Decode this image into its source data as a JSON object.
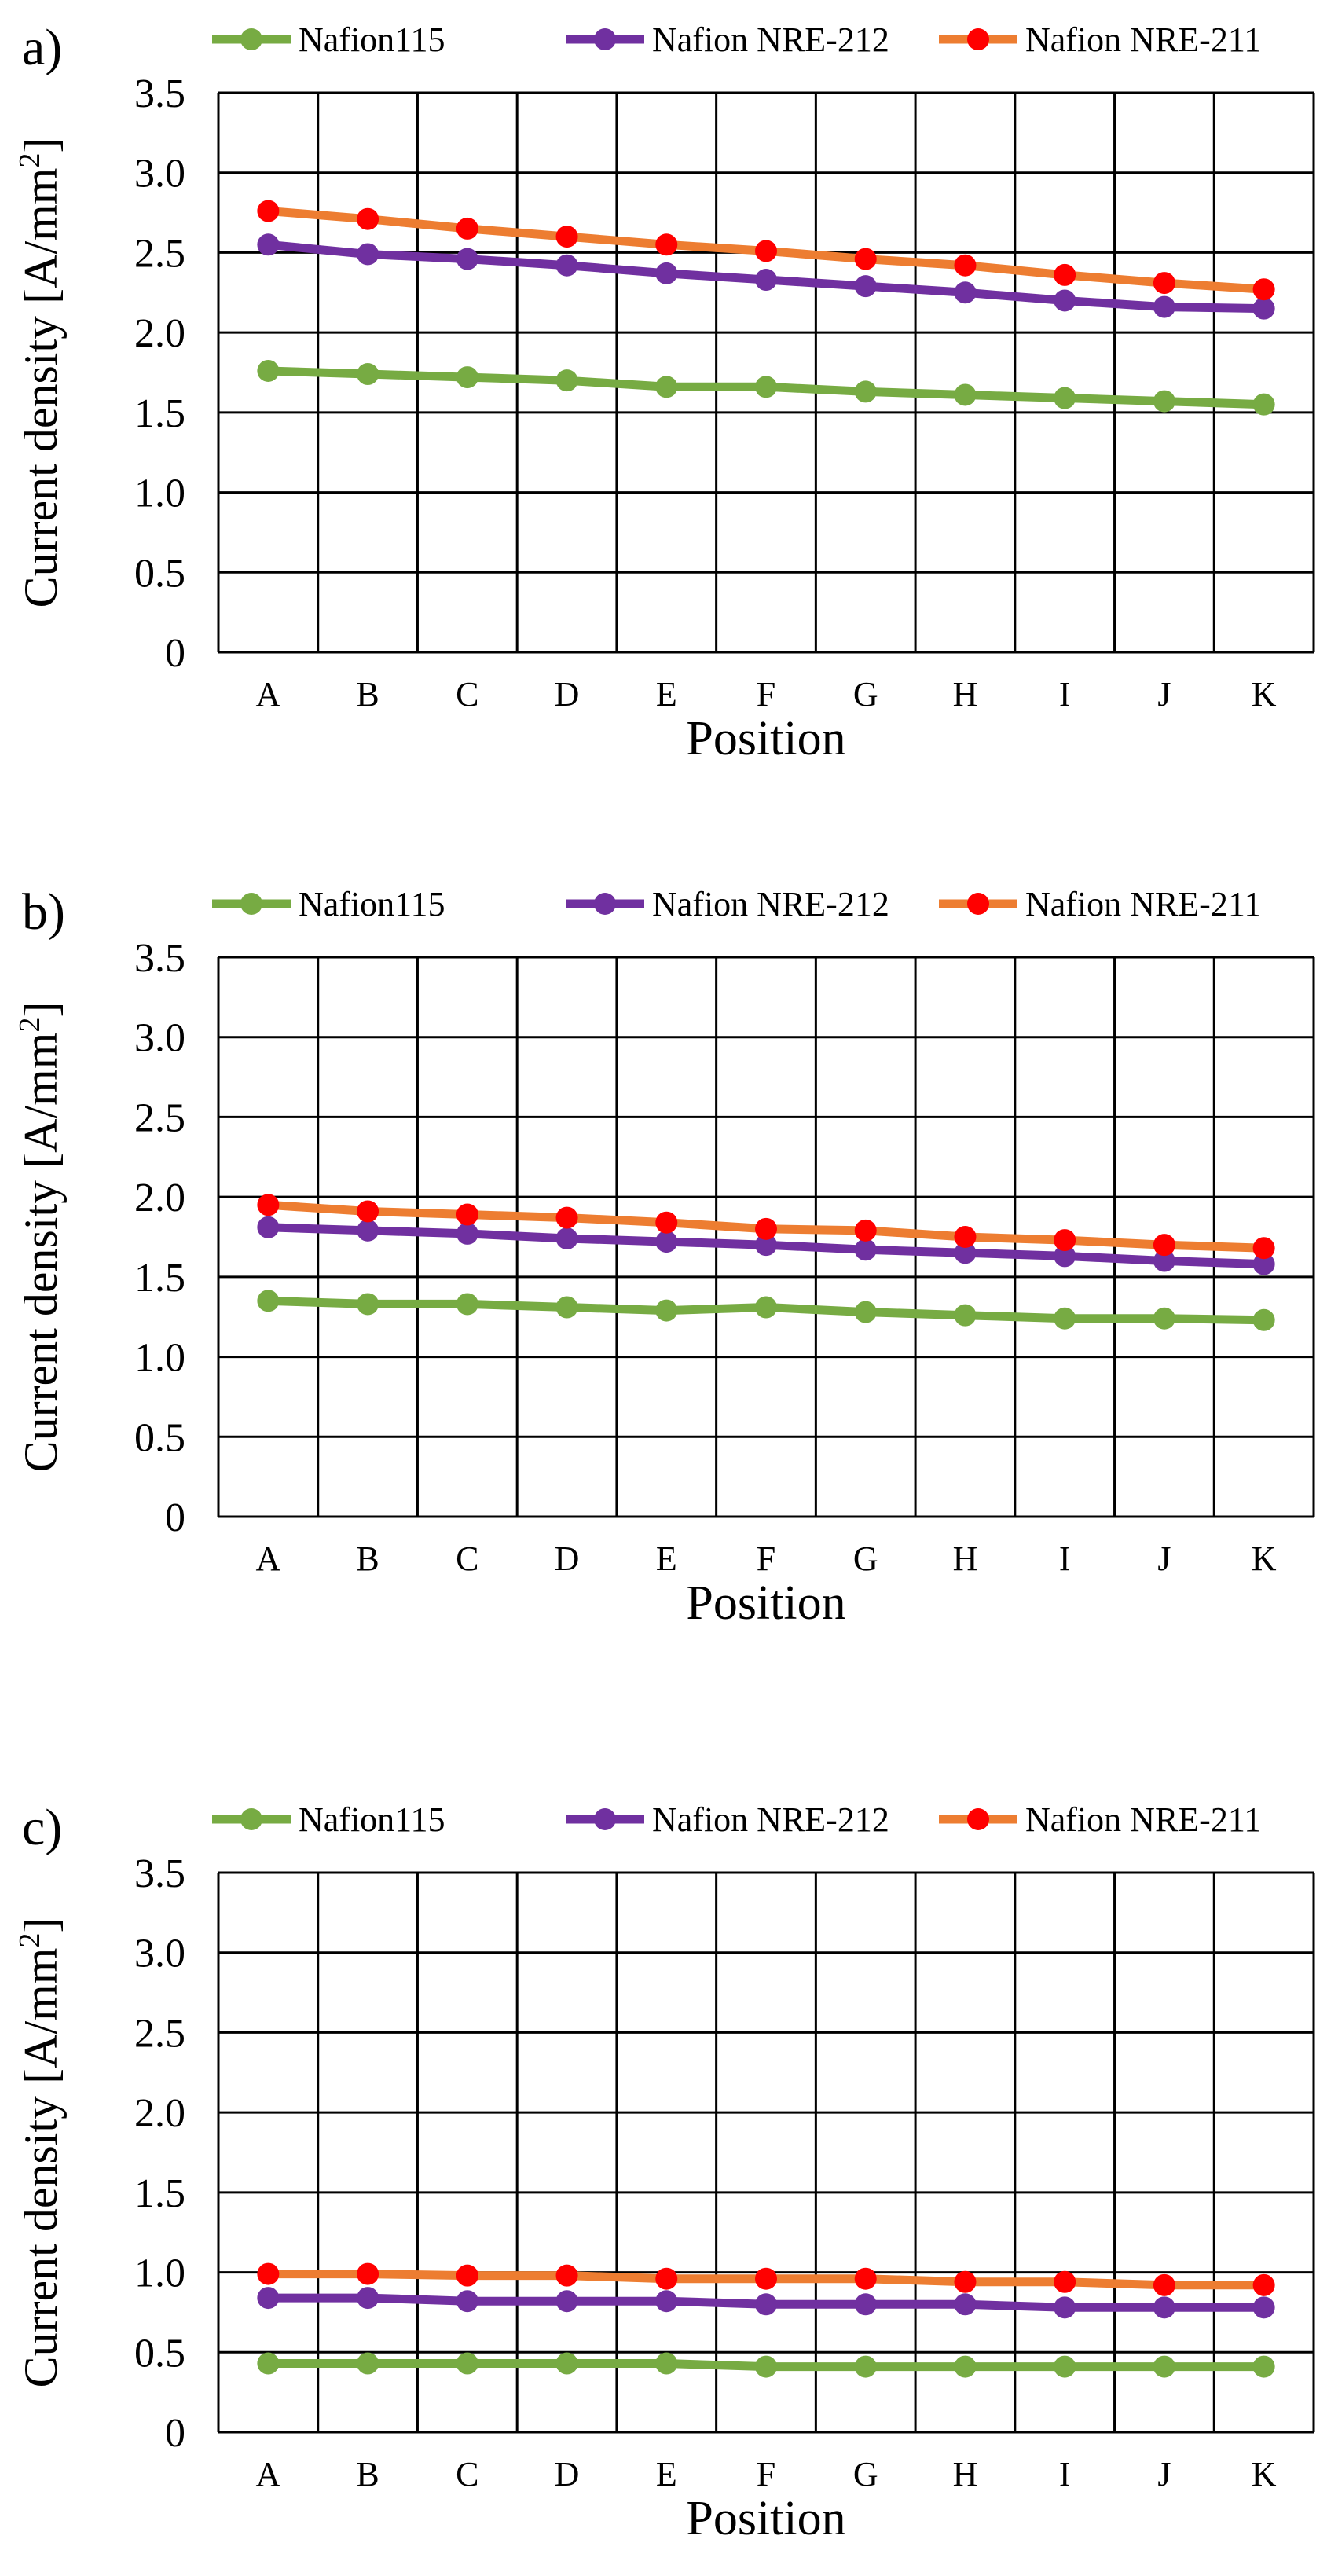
{
  "colors": {
    "Nafion115": "#77ab43",
    "Nafion NRE-212": "#7030a0",
    "Nafion NRE-211_line": "#ed7d31",
    "Nafion NRE-211_marker": "#ff0000"
  },
  "chart_data": [
    {
      "type": "line",
      "panel_label": "a)",
      "title": "",
      "xlabel": "Position",
      "ylabel_main": "Current density [A/mm",
      "ylabel_sup": "2",
      "ylabel_tail": "]",
      "categories": [
        "A",
        "B",
        "C",
        "D",
        "E",
        "F",
        "G",
        "H",
        "I",
        "J",
        "K"
      ],
      "ylim": [
        0,
        3.5
      ],
      "yticks": [
        "0",
        "0.5",
        "1.0",
        "1.5",
        "2.0",
        "2.5",
        "3.0",
        "3.5"
      ],
      "legend_position": "top",
      "series": [
        {
          "name": "Nafion115",
          "values": [
            1.76,
            1.74,
            1.72,
            1.7,
            1.66,
            1.66,
            1.63,
            1.61,
            1.59,
            1.57,
            1.55
          ]
        },
        {
          "name": "Nafion NRE-212",
          "values": [
            2.55,
            2.49,
            2.46,
            2.42,
            2.37,
            2.33,
            2.29,
            2.25,
            2.2,
            2.16,
            2.15
          ]
        },
        {
          "name": "Nafion NRE-211",
          "values": [
            2.76,
            2.71,
            2.65,
            2.6,
            2.55,
            2.51,
            2.46,
            2.42,
            2.36,
            2.31,
            2.27
          ]
        }
      ]
    },
    {
      "type": "line",
      "panel_label": "b)",
      "title": "",
      "xlabel": "Position",
      "ylabel_main": "Current density [A/mm",
      "ylabel_sup": "2",
      "ylabel_tail": "]",
      "categories": [
        "A",
        "B",
        "C",
        "D",
        "E",
        "F",
        "G",
        "H",
        "I",
        "J",
        "K"
      ],
      "ylim": [
        0,
        3.5
      ],
      "yticks": [
        "0",
        "0.5",
        "1.0",
        "1.5",
        "2.0",
        "2.5",
        "3.0",
        "3.5"
      ],
      "legend_position": "top",
      "series": [
        {
          "name": "Nafion115",
          "values": [
            1.35,
            1.33,
            1.33,
            1.31,
            1.29,
            1.31,
            1.28,
            1.26,
            1.24,
            1.24,
            1.23
          ]
        },
        {
          "name": "Nafion NRE-212",
          "values": [
            1.81,
            1.79,
            1.77,
            1.74,
            1.72,
            1.7,
            1.67,
            1.65,
            1.63,
            1.6,
            1.58
          ]
        },
        {
          "name": "Nafion NRE-211",
          "values": [
            1.95,
            1.91,
            1.89,
            1.87,
            1.84,
            1.8,
            1.79,
            1.75,
            1.73,
            1.7,
            1.68
          ]
        }
      ]
    },
    {
      "type": "line",
      "panel_label": "c)",
      "title": "",
      "xlabel": "Position",
      "ylabel_main": "Current density [A/mm",
      "ylabel_sup": "2",
      "ylabel_tail": "]",
      "categories": [
        "A",
        "B",
        "C",
        "D",
        "E",
        "F",
        "G",
        "H",
        "I",
        "J",
        "K"
      ],
      "ylim": [
        0,
        3.5
      ],
      "yticks": [
        "0",
        "0.5",
        "1.0",
        "1.5",
        "2.0",
        "2.5",
        "3.0",
        "3.5"
      ],
      "legend_position": "top",
      "series": [
        {
          "name": "Nafion115",
          "values": [
            0.43,
            0.43,
            0.43,
            0.43,
            0.43,
            0.41,
            0.41,
            0.41,
            0.41,
            0.41,
            0.41
          ]
        },
        {
          "name": "Nafion NRE-212",
          "values": [
            0.84,
            0.84,
            0.82,
            0.82,
            0.82,
            0.8,
            0.8,
            0.8,
            0.78,
            0.78,
            0.78
          ]
        },
        {
          "name": "Nafion NRE-211",
          "values": [
            0.99,
            0.99,
            0.98,
            0.98,
            0.96,
            0.96,
            0.96,
            0.94,
            0.94,
            0.92,
            0.92
          ]
        }
      ]
    }
  ]
}
